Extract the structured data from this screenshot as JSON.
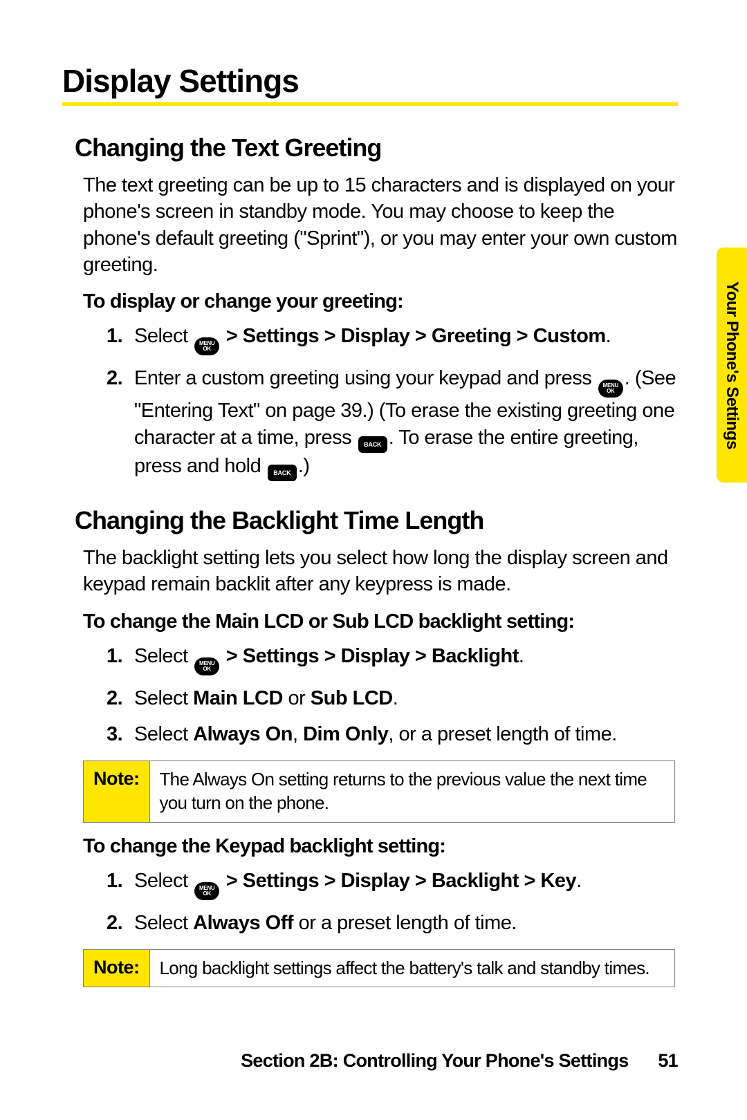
{
  "colors": {
    "accent": "#ffe600",
    "border": "#808080",
    "text": "#000000",
    "bg": "#ffffff"
  },
  "title": "Display Settings",
  "side_tab": "Your Phone's Settings",
  "section1": {
    "heading": "Changing the Text Greeting",
    "intro": "The text greeting can be up to 15 characters and is displayed on your phone's screen in standby mode. You may choose to keep the phone's default greeting (\"Sprint\"), or you may enter your own custom greeting.",
    "leadin": "To display or change your greeting:",
    "step1_pre": "Select ",
    "step1_path": " > Settings > Display > Greeting > Custom",
    "step2_a": "Enter a custom greeting using your keypad and press ",
    "step2_b": ". (See \"Entering Text\" on page 39.) (To erase the existing greeting one character at a time, press ",
    "step2_c": ". To erase the entire greeting, press and hold ",
    "step2_d": ".)"
  },
  "section2": {
    "heading": "Changing the Backlight Time Length",
    "intro": "The backlight setting lets you select how long the display screen and keypad remain backlit after any keypress is made.",
    "leadin1": "To change the Main LCD or Sub LCD backlight setting:",
    "s1_pre": "Select ",
    "s1_path": " > Settings > Display > Backlight",
    "s2_pre": "Select ",
    "s2_b1": "Main LCD",
    "s2_mid": " or ",
    "s2_b2": "Sub LCD",
    "s3_pre": "Select ",
    "s3_b1": "Always On",
    "s3_c1": ", ",
    "s3_b2": "Dim Only",
    "s3_post": ", or a preset length of time.",
    "note1_label": "Note:",
    "note1_text": "The Always On setting returns to the previous value the next time you turn on the phone.",
    "leadin2": "To change the Keypad backlight setting:",
    "k1_pre": "Select ",
    "k1_path": " > Settings > Display > Backlight > Key",
    "k2_pre": "Select ",
    "k2_b": "Always Off",
    "k2_post": " or a preset length of time.",
    "note2_label": "Note:",
    "note2_text": "Long backlight settings affect the battery's talk and standby times."
  },
  "footer": {
    "section": "Section 2B: Controlling Your Phone's Settings",
    "page": "51"
  },
  "icons": {
    "menu_top": "MENU",
    "menu_bot": "OK",
    "back": "BACK"
  }
}
